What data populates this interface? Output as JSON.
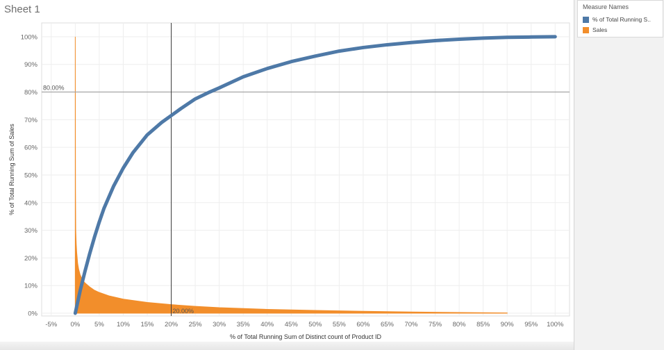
{
  "sheet": {
    "title": "Sheet 1"
  },
  "legend": {
    "title": "Measure Names",
    "items": [
      {
        "label": "% of Total Running S..",
        "color": "#4e79a7"
      },
      {
        "label": "Sales",
        "color": "#f28e2b"
      }
    ]
  },
  "chart_data": {
    "type": "line",
    "xlabel": "% of Total Running Sum of Distinct count of Product ID",
    "ylabel": "% of Total Running Sum of Sales",
    "xlim": [
      -7,
      103
    ],
    "ylim": [
      -1,
      105
    ],
    "x_ticks": [
      "-5%",
      "0%",
      "5%",
      "10%",
      "15%",
      "20%",
      "25%",
      "30%",
      "35%",
      "40%",
      "45%",
      "50%",
      "55%",
      "60%",
      "65%",
      "70%",
      "75%",
      "80%",
      "85%",
      "90%",
      "95%",
      "100%"
    ],
    "x_tick_values": [
      -5,
      0,
      5,
      10,
      15,
      20,
      25,
      30,
      35,
      40,
      45,
      50,
      55,
      60,
      65,
      70,
      75,
      80,
      85,
      90,
      95,
      100
    ],
    "y_ticks": [
      "0%",
      "10%",
      "20%",
      "30%",
      "40%",
      "50%",
      "60%",
      "70%",
      "80%",
      "90%",
      "100%"
    ],
    "y_tick_values": [
      0,
      10,
      20,
      30,
      40,
      50,
      60,
      70,
      80,
      90,
      100
    ],
    "grid": true,
    "reference_lines": [
      {
        "axis": "y",
        "value": 80,
        "label": "80.00%"
      },
      {
        "axis": "x",
        "value": 20,
        "label": "20.00%"
      }
    ],
    "series": [
      {
        "name": "% of Total Running S..",
        "color": "#4e79a7",
        "x": [
          0,
          1,
          2,
          3,
          4,
          5,
          6,
          8,
          10,
          12,
          15,
          18,
          20,
          22,
          25,
          28,
          30,
          35,
          40,
          45,
          50,
          55,
          60,
          65,
          70,
          75,
          80,
          85,
          90,
          95,
          100
        ],
        "y": [
          0,
          8,
          15,
          21.5,
          27.5,
          33,
          38,
          46,
          52.5,
          58,
          64.5,
          69,
          71.5,
          74,
          77.5,
          80,
          81.5,
          85.5,
          88.5,
          91,
          93,
          94.8,
          96.1,
          97.1,
          97.9,
          98.6,
          99.1,
          99.5,
          99.8,
          99.9,
          100
        ]
      },
      {
        "name": "Sales",
        "color": "#f28e2b",
        "x": [
          0,
          0.05,
          0.1,
          0.2,
          0.3,
          0.5,
          0.7,
          1,
          1.5,
          2,
          3,
          4,
          5,
          7,
          10,
          15,
          20,
          25,
          30,
          40,
          50,
          60,
          70,
          80,
          90
        ],
        "y": [
          100,
          45,
          30,
          25,
          22,
          18,
          16,
          14,
          12,
          11,
          9.5,
          8.3,
          7.5,
          6.3,
          5.1,
          3.9,
          3.1,
          2.5,
          2,
          1.4,
          1,
          0.7,
          0.45,
          0.25,
          0.1
        ]
      }
    ]
  }
}
